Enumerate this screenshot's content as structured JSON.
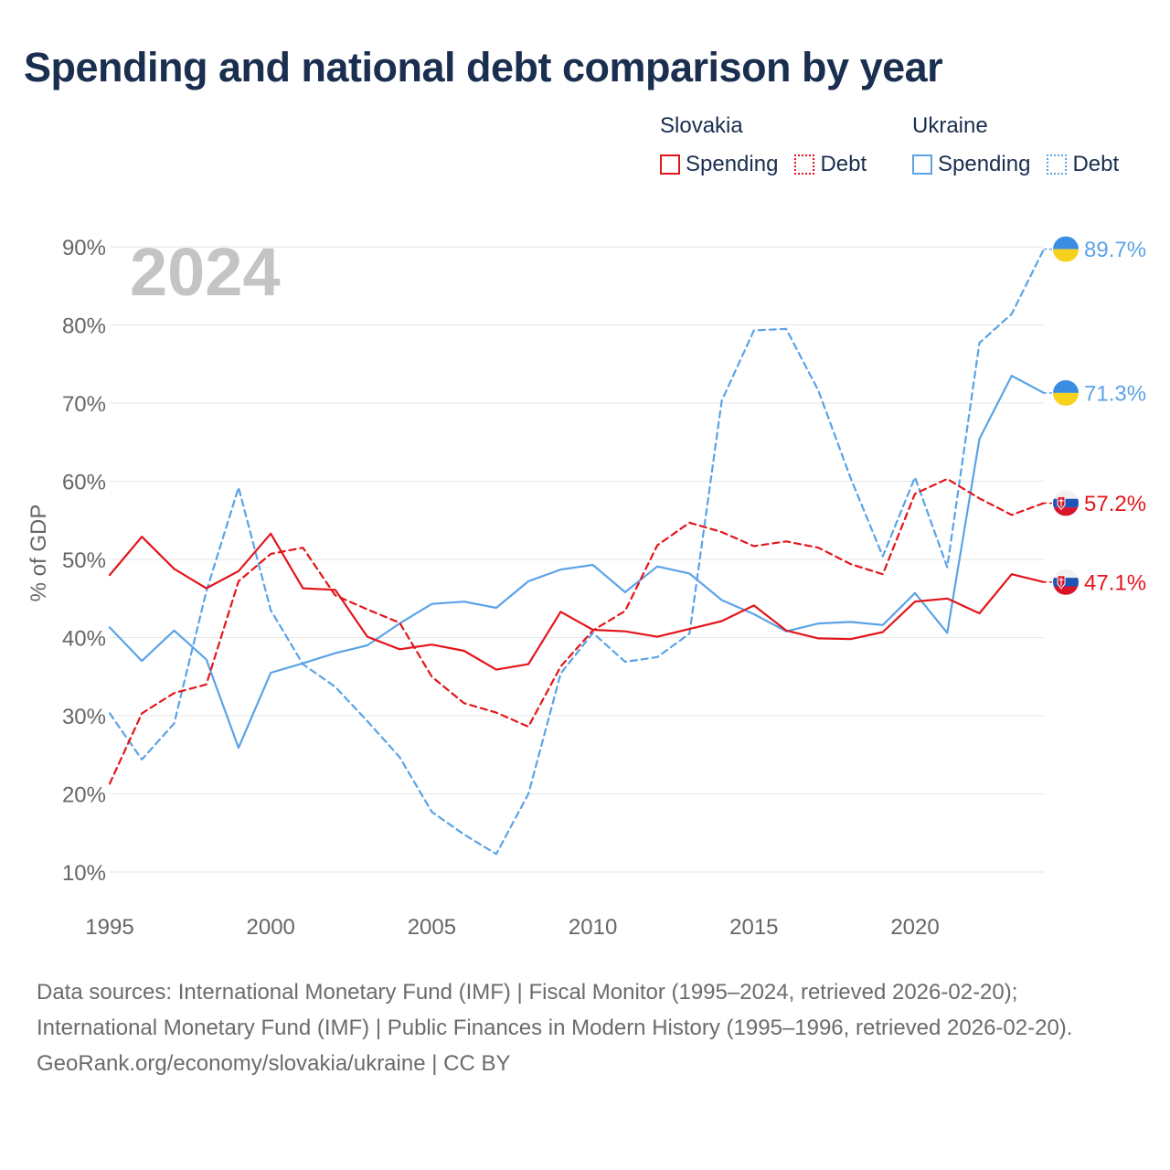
{
  "title": "Spending and national debt comparison by year",
  "legend": {
    "groups": [
      {
        "name": "Slovakia",
        "color": "#e3151b",
        "items": [
          "Spending",
          "Debt"
        ]
      },
      {
        "name": "Ukraine",
        "color": "#5ba3e6",
        "items": [
          "Spending",
          "Debt"
        ]
      }
    ]
  },
  "chart_data": {
    "type": "line",
    "year_label": "2024",
    "ylabel": "% of GDP",
    "xlabel": "",
    "x": [
      1995,
      1996,
      1997,
      1998,
      1999,
      2000,
      2001,
      2002,
      2003,
      2004,
      2005,
      2006,
      2007,
      2008,
      2009,
      2010,
      2011,
      2012,
      2013,
      2014,
      2015,
      2016,
      2017,
      2018,
      2019,
      2020,
      2021,
      2022,
      2023,
      2024
    ],
    "xlim": [
      1995,
      2024
    ],
    "ylim": [
      10,
      90
    ],
    "x_ticks": [
      1995,
      2000,
      2005,
      2010,
      2015,
      2020
    ],
    "y_ticks": [
      10,
      20,
      30,
      40,
      50,
      60,
      70,
      80,
      90
    ],
    "y_tick_labels": [
      "10%",
      "20%",
      "30%",
      "40%",
      "50%",
      "60%",
      "70%",
      "80%",
      "90%"
    ],
    "series": [
      {
        "name": "Slovakia Spending",
        "country": "Slovakia",
        "kind": "Spending",
        "color": "#e3151b",
        "dashed": false,
        "end_label": "47.1%",
        "values": [
          48.0,
          52.9,
          48.8,
          46.3,
          48.5,
          53.3,
          46.3,
          46.1,
          40.1,
          38.5,
          39.1,
          38.3,
          35.9,
          36.6,
          43.3,
          41.0,
          40.8,
          40.1,
          41.1,
          42.1,
          44.1,
          40.9,
          39.9,
          39.8,
          40.7,
          44.6,
          45.0,
          43.1,
          48.1,
          47.1
        ]
      },
      {
        "name": "Slovakia Debt",
        "country": "Slovakia",
        "kind": "Debt",
        "color": "#e3151b",
        "dashed": true,
        "end_label": "57.2%",
        "values": [
          21.3,
          30.3,
          32.9,
          34.0,
          47.2,
          50.7,
          51.5,
          45.4,
          43.6,
          41.9,
          35.0,
          31.6,
          30.4,
          28.6,
          36.3,
          40.9,
          43.4,
          51.8,
          54.7,
          53.5,
          51.7,
          52.3,
          51.5,
          49.4,
          48.1,
          58.4,
          60.3,
          57.8,
          55.7,
          57.2
        ]
      },
      {
        "name": "Ukraine Spending",
        "country": "Ukraine",
        "kind": "Spending",
        "color": "#5ba3e6",
        "dashed": false,
        "end_label": "71.3%",
        "values": [
          41.3,
          37.0,
          40.9,
          37.2,
          25.9,
          35.5,
          36.7,
          38.0,
          39.0,
          41.8,
          44.3,
          44.6,
          43.8,
          47.2,
          48.7,
          49.3,
          45.8,
          49.1,
          48.2,
          44.8,
          43.0,
          40.8,
          41.8,
          42.0,
          41.6,
          45.7,
          40.6,
          65.4,
          73.5,
          71.3
        ]
      },
      {
        "name": "Ukraine Debt",
        "country": "Ukraine",
        "kind": "Debt",
        "color": "#5ba3e6",
        "dashed": true,
        "end_label": "89.7%",
        "values": [
          30.3,
          24.4,
          29.0,
          45.9,
          59.2,
          43.5,
          36.6,
          33.7,
          29.3,
          24.7,
          17.7,
          14.8,
          12.3,
          20.0,
          35.4,
          40.6,
          36.9,
          37.5,
          40.5,
          70.3,
          79.3,
          79.5,
          71.6,
          60.4,
          50.4,
          60.5,
          49.0,
          77.7,
          81.4,
          89.7
        ]
      }
    ]
  },
  "footer": {
    "sources": "Data sources: International Monetary Fund (IMF) | Fiscal Monitor (1995–2024, retrieved 2026-02-20); International Monetary Fund (IMF) | Public Finances in Modern History (1995–1996, retrieved 2026-02-20).",
    "credit": "GeoRank.org/economy/slovakia/ukraine | CC BY"
  }
}
